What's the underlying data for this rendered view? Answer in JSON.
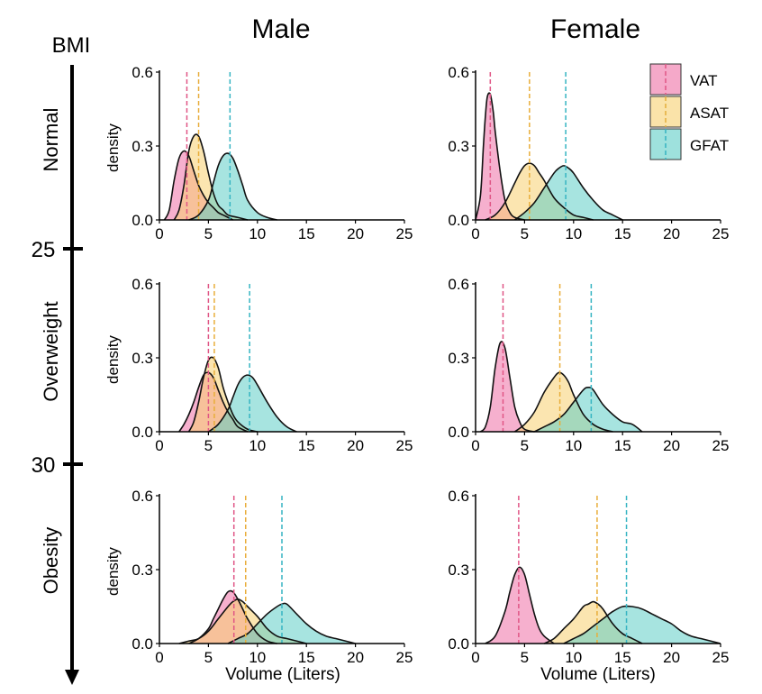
{
  "figure": {
    "col_titles": [
      "Male",
      "Female"
    ],
    "bmi_label": "BMI",
    "row_labels": [
      "Normal",
      "Overweight",
      "Obesity"
    ],
    "bmi_ticks": [
      "25",
      "30"
    ],
    "ylabel": "density",
    "xlabel": "Volume (Liters)"
  },
  "legend": [
    {
      "name": "VAT",
      "color": "#ef6fa5"
    },
    {
      "name": "ASAT",
      "color": "#f7d070"
    },
    {
      "name": "GFAT",
      "color": "#5ecdc6"
    }
  ],
  "chart_data": {
    "type": "area",
    "subtype": "density",
    "xlim": [
      0,
      25
    ],
    "ylim": [
      0,
      0.6
    ],
    "xticks": [
      "0",
      "5",
      "10",
      "15",
      "20",
      "25"
    ],
    "yticks": [
      "0.0",
      "0.3",
      "0.6"
    ],
    "series_colors": {
      "VAT": "#ef6fa5",
      "ASAT": "#f7d070",
      "GFAT": "#5ecdc6"
    },
    "panels": [
      {
        "row": "Normal",
        "col": "Male",
        "series": [
          {
            "name": "VAT",
            "x": [
              0.5,
              1,
              1.5,
              2,
              2.5,
              3,
              3.5,
              4,
              4.5,
              5,
              5.5,
              6,
              6.5,
              7,
              7.5
            ],
            "density": [
              0,
              0.04,
              0.16,
              0.25,
              0.28,
              0.26,
              0.2,
              0.14,
              0.1,
              0.07,
              0.05,
              0.03,
              0.02,
              0.01,
              0
            ],
            "mean": 2.8
          },
          {
            "name": "ASAT",
            "x": [
              1.5,
              2,
              2.5,
              3,
              3.5,
              4,
              4.5,
              5,
              5.5,
              6,
              6.5,
              7,
              8,
              9
            ],
            "density": [
              0,
              0.04,
              0.14,
              0.28,
              0.34,
              0.34,
              0.28,
              0.19,
              0.11,
              0.06,
              0.04,
              0.02,
              0.01,
              0
            ],
            "mean": 4.0
          },
          {
            "name": "GFAT",
            "x": [
              3,
              4,
              5,
              5.5,
              6,
              6.5,
              7,
              7.5,
              8,
              8.5,
              9,
              10,
              11,
              12
            ],
            "density": [
              0,
              0.02,
              0.08,
              0.15,
              0.22,
              0.26,
              0.27,
              0.25,
              0.2,
              0.14,
              0.08,
              0.03,
              0.01,
              0
            ],
            "mean": 7.2
          }
        ]
      },
      {
        "row": "Normal",
        "col": "Female",
        "series": [
          {
            "name": "VAT",
            "x": [
              0,
              0.5,
              0.8,
              1,
              1.2,
              1.5,
              1.8,
              2,
              2.5,
              3,
              3.5,
              4,
              5
            ],
            "density": [
              0,
              0.1,
              0.3,
              0.42,
              0.5,
              0.51,
              0.44,
              0.36,
              0.2,
              0.08,
              0.03,
              0.01,
              0
            ],
            "mean": 1.5
          },
          {
            "name": "ASAT",
            "x": [
              1,
              2,
              3,
              4,
              4.5,
              5,
              5.5,
              6,
              6.5,
              7,
              8,
              9,
              10,
              11,
              12
            ],
            "density": [
              0,
              0.02,
              0.07,
              0.15,
              0.19,
              0.22,
              0.23,
              0.22,
              0.19,
              0.16,
              0.09,
              0.05,
              0.02,
              0.01,
              0
            ],
            "mean": 5.5
          },
          {
            "name": "GFAT",
            "x": [
              4,
              5,
              6,
              7,
              8,
              8.5,
              9,
              9.5,
              10,
              11,
              12,
              13,
              14,
              15
            ],
            "density": [
              0,
              0.03,
              0.07,
              0.13,
              0.19,
              0.21,
              0.22,
              0.21,
              0.19,
              0.13,
              0.08,
              0.04,
              0.02,
              0
            ],
            "mean": 9.2
          }
        ]
      },
      {
        "row": "Overweight",
        "col": "Male",
        "series": [
          {
            "name": "VAT",
            "x": [
              2,
              2.5,
              3,
              3.5,
              4,
              4.5,
              5,
              5.5,
              6,
              6.5,
              7,
              7.5,
              8,
              9
            ],
            "density": [
              0,
              0.03,
              0.07,
              0.12,
              0.18,
              0.23,
              0.24,
              0.22,
              0.17,
              0.12,
              0.08,
              0.05,
              0.02,
              0
            ],
            "mean": 5.0
          },
          {
            "name": "ASAT",
            "x": [
              3,
              3.5,
              4,
              4.5,
              5,
              5.5,
              6,
              6.5,
              7,
              7.5,
              8,
              9,
              10
            ],
            "density": [
              0,
              0.04,
              0.12,
              0.22,
              0.29,
              0.3,
              0.26,
              0.18,
              0.12,
              0.07,
              0.04,
              0.01,
              0
            ],
            "mean": 5.6
          },
          {
            "name": "GFAT",
            "x": [
              5,
              6,
              7,
              7.5,
              8,
              8.5,
              9,
              9.5,
              10,
              11,
              12,
              13,
              14
            ],
            "density": [
              0,
              0.03,
              0.09,
              0.14,
              0.19,
              0.22,
              0.23,
              0.22,
              0.19,
              0.12,
              0.06,
              0.02,
              0
            ],
            "mean": 9.2
          }
        ]
      },
      {
        "row": "Overweight",
        "col": "Female",
        "series": [
          {
            "name": "VAT",
            "x": [
              0.5,
              1,
              1.5,
              2,
              2.5,
              3,
              3.5,
              4,
              4.5,
              5,
              6
            ],
            "density": [
              0,
              0.02,
              0.1,
              0.26,
              0.36,
              0.34,
              0.22,
              0.1,
              0.04,
              0.01,
              0
            ],
            "mean": 2.8
          },
          {
            "name": "ASAT",
            "x": [
              4,
              5,
              6,
              7,
              8,
              8.5,
              9,
              9.5,
              10,
              11,
              12,
              13,
              14
            ],
            "density": [
              0,
              0.03,
              0.08,
              0.16,
              0.22,
              0.24,
              0.23,
              0.2,
              0.15,
              0.07,
              0.03,
              0.01,
              0
            ],
            "mean": 8.6
          },
          {
            "name": "GFAT",
            "x": [
              6,
              7,
              8,
              9,
              10,
              11,
              11.5,
              12,
              13,
              14,
              15,
              16,
              17
            ],
            "density": [
              0,
              0.02,
              0.04,
              0.07,
              0.12,
              0.17,
              0.18,
              0.17,
              0.11,
              0.07,
              0.04,
              0.03,
              0
            ],
            "mean": 11.8
          }
        ]
      },
      {
        "row": "Obesity",
        "col": "Male",
        "series": [
          {
            "name": "VAT",
            "x": [
              3,
              4,
              5,
              5.5,
              6,
              6.5,
              7,
              7.5,
              8,
              8.5,
              9,
              10,
              11,
              12
            ],
            "density": [
              0,
              0.02,
              0.06,
              0.1,
              0.14,
              0.18,
              0.21,
              0.21,
              0.18,
              0.14,
              0.1,
              0.04,
              0.01,
              0
            ],
            "mean": 7.6
          },
          {
            "name": "ASAT",
            "x": [
              2,
              3,
              4,
              5,
              6,
              7,
              7.5,
              8,
              8.5,
              9,
              10,
              11,
              12,
              13,
              14,
              15
            ],
            "density": [
              0,
              0.01,
              0.02,
              0.05,
              0.1,
              0.15,
              0.17,
              0.18,
              0.17,
              0.15,
              0.11,
              0.06,
              0.03,
              0.02,
              0.01,
              0
            ],
            "mean": 8.8
          },
          {
            "name": "GFAT",
            "x": [
              7,
              8,
              9,
              10,
              11,
              12,
              12.5,
              13,
              14,
              15,
              16,
              17,
              18,
              19,
              20
            ],
            "density": [
              0,
              0.02,
              0.04,
              0.08,
              0.12,
              0.15,
              0.16,
              0.16,
              0.12,
              0.08,
              0.05,
              0.03,
              0.02,
              0.01,
              0
            ],
            "mean": 12.5
          }
        ]
      },
      {
        "row": "Obesity",
        "col": "Female",
        "series": [
          {
            "name": "VAT",
            "x": [
              1,
              2,
              3,
              3.5,
              4,
              4.5,
              5,
              5.5,
              6,
              6.5,
              7,
              8
            ],
            "density": [
              0,
              0.03,
              0.13,
              0.21,
              0.28,
              0.31,
              0.28,
              0.2,
              0.12,
              0.06,
              0.03,
              0
            ],
            "mean": 4.4
          },
          {
            "name": "ASAT",
            "x": [
              7,
              8,
              9,
              10,
              11,
              11.5,
              12,
              12.5,
              13,
              14,
              15,
              16,
              17
            ],
            "density": [
              0,
              0.02,
              0.06,
              0.1,
              0.15,
              0.16,
              0.17,
              0.16,
              0.14,
              0.08,
              0.04,
              0.02,
              0
            ],
            "mean": 12.4
          },
          {
            "name": "GFAT",
            "x": [
              9,
              10,
              11,
              12,
              13,
              14,
              15,
              16,
              17,
              18,
              19,
              20,
              21,
              22,
              23,
              24,
              25
            ],
            "density": [
              0,
              0.02,
              0.04,
              0.07,
              0.1,
              0.13,
              0.15,
              0.15,
              0.14,
              0.12,
              0.1,
              0.08,
              0.05,
              0.03,
              0.02,
              0.01,
              0
            ],
            "mean": 15.4
          }
        ]
      }
    ]
  }
}
